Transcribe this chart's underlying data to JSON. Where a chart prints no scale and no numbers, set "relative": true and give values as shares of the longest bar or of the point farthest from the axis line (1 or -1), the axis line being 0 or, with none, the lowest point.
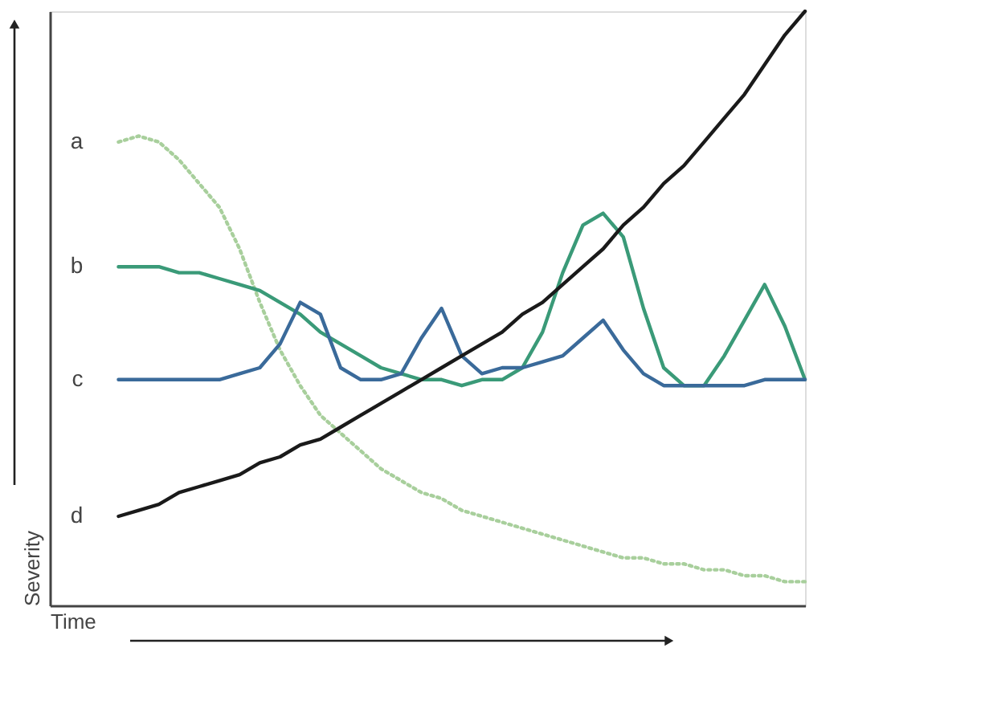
{
  "chart_data": {
    "type": "line",
    "relative": true,
    "xlabel": "Time",
    "ylabel": "Severity",
    "tick_labels": false,
    "marker": "none",
    "categories": [
      null,
      null,
      null,
      null,
      null,
      null,
      null,
      null,
      null,
      null,
      null,
      null,
      null,
      null,
      null,
      null,
      null,
      null,
      null,
      null,
      null,
      null,
      null,
      null,
      null,
      null,
      null,
      null,
      null,
      null,
      null,
      null,
      null,
      null,
      null
    ],
    "series": [
      {
        "name": "a",
        "color": "#a8cf9c",
        "line_style": "dotted",
        "values": [
          0.78,
          0.79,
          0.78,
          0.75,
          0.71,
          0.67,
          0.6,
          0.51,
          0.43,
          0.37,
          0.32,
          0.29,
          0.26,
          0.23,
          0.21,
          0.19,
          0.18,
          0.16,
          0.15,
          0.14,
          0.13,
          0.12,
          0.11,
          0.1,
          0.09,
          0.08,
          0.08,
          0.07,
          0.07,
          0.06,
          0.06,
          0.05,
          0.05,
          0.04,
          0.04
        ]
      },
      {
        "name": "b",
        "color": "#3a9a78",
        "line_style": "solid",
        "values": [
          0.57,
          0.57,
          0.57,
          0.56,
          0.56,
          0.55,
          0.54,
          0.53,
          0.51,
          0.49,
          0.46,
          0.44,
          0.42,
          0.4,
          0.39,
          0.38,
          0.38,
          0.37,
          0.38,
          0.38,
          0.4,
          0.46,
          0.56,
          0.64,
          0.66,
          0.62,
          0.5,
          0.4,
          0.37,
          0.37,
          0.42,
          0.48,
          0.54,
          0.47,
          0.38
        ]
      },
      {
        "name": "c",
        "color": "#3a6a9a",
        "line_style": "solid",
        "values": [
          0.38,
          0.38,
          0.38,
          0.38,
          0.38,
          0.38,
          0.39,
          0.4,
          0.44,
          0.51,
          0.49,
          0.4,
          0.38,
          0.38,
          0.39,
          0.45,
          0.5,
          0.42,
          0.39,
          0.4,
          0.4,
          0.41,
          0.42,
          0.45,
          0.48,
          0.43,
          0.39,
          0.37,
          0.37,
          0.37,
          0.37,
          0.37,
          0.38,
          0.38,
          0.38
        ]
      },
      {
        "name": "d",
        "color": "#1a1a1a",
        "line_style": "solid",
        "values": [
          0.15,
          0.16,
          0.17,
          0.19,
          0.2,
          0.21,
          0.22,
          0.24,
          0.25,
          0.27,
          0.28,
          0.3,
          0.32,
          0.34,
          0.36,
          0.38,
          0.4,
          0.42,
          0.44,
          0.46,
          0.49,
          0.51,
          0.54,
          0.57,
          0.6,
          0.64,
          0.67,
          0.71,
          0.74,
          0.78,
          0.82,
          0.86,
          0.91,
          0.96,
          1.0
        ]
      }
    ]
  }
}
